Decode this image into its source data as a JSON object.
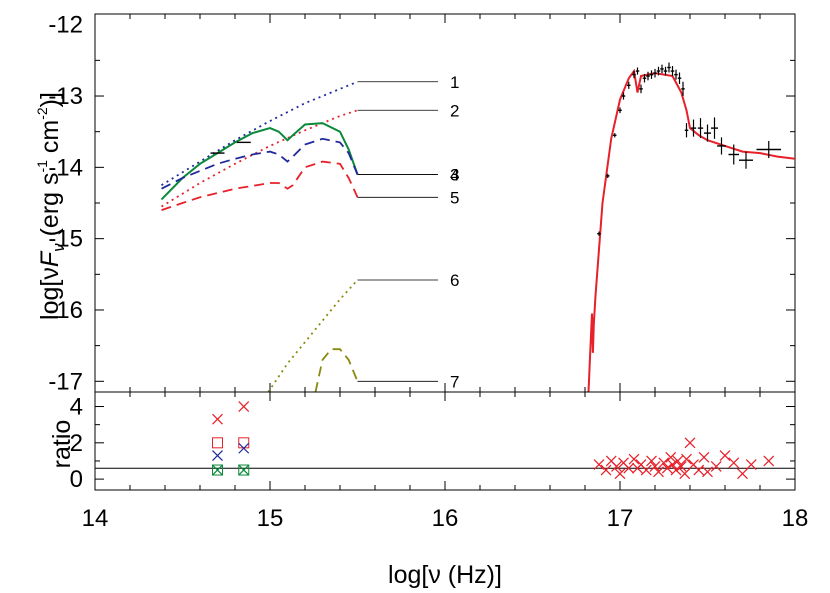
{
  "chart_data": [
    {
      "panel": "upper",
      "type": "line",
      "xlabel": "log[ν (Hz)]",
      "ylabel_parts": [
        "log[ν",
        "F",
        "ν",
        " (erg s",
        "-1",
        " cm",
        "-2",
        ")]"
      ],
      "xlim": [
        14,
        18
      ],
      "ylim": [
        -17.15,
        -11.85
      ],
      "yticks": [
        -12,
        -13,
        -14,
        -15,
        -16,
        -17
      ],
      "grid": false,
      "colors": {
        "red": "#e8202a",
        "blue": "#1f2a9a",
        "green": "#0a8a3a",
        "olive": "#8a8a10",
        "black": "#000000"
      },
      "series": [
        {
          "label": "1",
          "style": "dotted",
          "color": "#1f2a9a",
          "x": [
            14.38,
            14.6,
            14.8,
            15.0,
            15.2,
            15.4,
            15.5
          ],
          "y": [
            -14.25,
            -13.92,
            -13.62,
            -13.35,
            -13.1,
            -12.9,
            -12.8
          ]
        },
        {
          "label": "2",
          "style": "dotted",
          "color": "#e8202a",
          "x": [
            14.38,
            14.6,
            14.8,
            15.0,
            15.2,
            15.4,
            15.5
          ],
          "y": [
            -14.55,
            -14.22,
            -13.95,
            -13.7,
            -13.48,
            -13.28,
            -13.2
          ]
        },
        {
          "label": "3",
          "style": "solid",
          "color": "#0a8a3a",
          "x": [
            14.38,
            14.5,
            14.6,
            14.7,
            14.8,
            14.9,
            15.0,
            15.05,
            15.1,
            15.13,
            15.2,
            15.3,
            15.4,
            15.45,
            15.5
          ],
          "y": [
            -14.45,
            -14.15,
            -13.95,
            -13.8,
            -13.65,
            -13.52,
            -13.45,
            -13.5,
            -13.62,
            -13.55,
            -13.4,
            -13.38,
            -13.5,
            -13.75,
            -14.1
          ]
        },
        {
          "label": "4",
          "style": "dashed",
          "color": "#1f2a9a",
          "x": [
            14.38,
            14.5,
            14.6,
            14.7,
            14.8,
            14.9,
            15.0,
            15.05,
            15.1,
            15.13,
            15.2,
            15.3,
            15.4,
            15.45,
            15.5
          ],
          "y": [
            -14.3,
            -14.15,
            -14.05,
            -13.95,
            -13.88,
            -13.82,
            -13.78,
            -13.82,
            -13.92,
            -13.85,
            -13.68,
            -13.6,
            -13.65,
            -13.8,
            -14.1
          ]
        },
        {
          "label": "5",
          "style": "dashed",
          "color": "#e8202a",
          "x": [
            14.38,
            14.5,
            14.6,
            14.7,
            14.8,
            14.9,
            15.0,
            15.05,
            15.1,
            15.13,
            15.2,
            15.3,
            15.4,
            15.45,
            15.5
          ],
          "y": [
            -14.6,
            -14.5,
            -14.42,
            -14.36,
            -14.3,
            -14.26,
            -14.22,
            -14.22,
            -14.3,
            -14.25,
            -14.0,
            -13.92,
            -13.95,
            -14.15,
            -14.42
          ]
        },
        {
          "label": "6",
          "style": "dotted",
          "color": "#8a8a10",
          "x": [
            14.99,
            15.1,
            15.2,
            15.3,
            15.4,
            15.5
          ],
          "y": [
            -17.15,
            -16.75,
            -16.45,
            -16.15,
            -15.85,
            -15.58
          ]
        },
        {
          "label": "7",
          "style": "dashed",
          "color": "#8a8a10",
          "x": [
            15.26,
            15.3,
            15.35,
            15.4,
            15.45,
            15.5
          ],
          "y": [
            -17.15,
            -16.7,
            -16.55,
            -16.55,
            -16.7,
            -17.0
          ]
        },
        {
          "label": "",
          "style": "solid",
          "color": "#e8202a",
          "x": [
            16.82,
            16.83,
            16.84,
            16.845,
            16.85,
            16.86,
            16.9,
            16.95,
            17.0,
            17.05,
            17.08,
            17.1,
            17.12,
            17.2,
            17.3,
            17.35,
            17.38,
            17.4,
            17.45,
            17.5,
            17.6,
            17.7,
            17.8,
            17.9,
            18.0
          ],
          "y": [
            -17.15,
            -16.6,
            -16.05,
            -16.6,
            -16.2,
            -15.8,
            -14.5,
            -13.6,
            -13.05,
            -12.75,
            -12.65,
            -12.95,
            -12.72,
            -12.68,
            -12.72,
            -12.95,
            -13.2,
            -13.45,
            -13.55,
            -13.62,
            -13.7,
            -13.78,
            -13.8,
            -13.85,
            -13.88
          ]
        }
      ],
      "points": [
        {
          "color": "#000000",
          "x": [
            14.7,
            14.85
          ],
          "y": [
            -13.8,
            -13.65
          ],
          "xerr": [
            0.04,
            0.04
          ],
          "yerr": [
            0,
            0
          ]
        },
        {
          "color": "#000000",
          "x": [
            16.88,
            16.93,
            16.97,
            17.0,
            17.02,
            17.05,
            17.08,
            17.1,
            17.12,
            17.14,
            17.16,
            17.18,
            17.2,
            17.22,
            17.24,
            17.26,
            17.28,
            17.3,
            17.32,
            17.34,
            17.36,
            17.38,
            17.42,
            17.46,
            17.5,
            17.54,
            17.58,
            17.65,
            17.72,
            17.85
          ],
          "y": [
            -14.93,
            -14.12,
            -13.55,
            -13.2,
            -13.0,
            -12.85,
            -12.7,
            -12.65,
            -12.9,
            -12.75,
            -12.72,
            -12.7,
            -12.68,
            -12.65,
            -12.62,
            -12.65,
            -12.6,
            -12.65,
            -12.7,
            -12.75,
            -12.9,
            -13.48,
            -13.45,
            -13.45,
            -13.52,
            -13.45,
            -13.7,
            -13.82,
            -13.9,
            -13.75
          ],
          "xerr": [
            0.01,
            0.01,
            0.01,
            0.01,
            0.01,
            0.01,
            0.01,
            0.01,
            0.01,
            0.01,
            0.01,
            0.01,
            0.01,
            0.01,
            0.01,
            0.01,
            0.01,
            0.01,
            0.01,
            0.01,
            0.01,
            0.01,
            0.015,
            0.015,
            0.02,
            0.02,
            0.025,
            0.03,
            0.04,
            0.07
          ],
          "yerr": [
            0.03,
            0.03,
            0.03,
            0.04,
            0.05,
            0.05,
            0.05,
            0.05,
            0.06,
            0.06,
            0.06,
            0.06,
            0.06,
            0.06,
            0.06,
            0.06,
            0.07,
            0.07,
            0.07,
            0.08,
            0.1,
            0.1,
            0.12,
            0.14,
            0.12,
            0.15,
            0.12,
            0.14,
            0.12,
            0.12
          ]
        }
      ]
    },
    {
      "panel": "lower",
      "type": "scatter",
      "ylabel": "ratio",
      "xlim": [
        14,
        18
      ],
      "ylim": [
        -0.6,
        4.8
      ],
      "yticks": [
        0,
        2,
        4
      ],
      "xticks": [
        14,
        15,
        16,
        17,
        18
      ],
      "reference_line": 0.6,
      "series": [
        {
          "marker": "x",
          "color": "#e8202a",
          "x": [
            14.7,
            14.85,
            16.88,
            16.92,
            16.95,
            16.98,
            17.0,
            17.02,
            17.05,
            17.08,
            17.1,
            17.12,
            17.15,
            17.18,
            17.2,
            17.22,
            17.25,
            17.27,
            17.29,
            17.3,
            17.32,
            17.33,
            17.35,
            17.37,
            17.38,
            17.4,
            17.42,
            17.45,
            17.48,
            17.5,
            17.55,
            17.6,
            17.65,
            17.7,
            17.75,
            17.85
          ],
          "y": [
            3.3,
            4.0,
            0.8,
            0.5,
            1.0,
            0.7,
            0.3,
            0.9,
            0.6,
            1.1,
            0.6,
            0.8,
            0.5,
            1.0,
            0.7,
            0.4,
            0.9,
            0.6,
            1.2,
            0.8,
            0.5,
            1.0,
            0.7,
            0.3,
            1.1,
            2.0,
            0.8,
            0.5,
            1.2,
            0.4,
            0.7,
            1.3,
            0.9,
            0.3,
            0.8,
            1.0
          ]
        },
        {
          "marker": "square",
          "color": "#e8202a",
          "x": [
            14.7,
            14.85
          ],
          "y": [
            2.0,
            2.0
          ]
        },
        {
          "marker": "x",
          "color": "#1f2a9a",
          "x": [
            14.7,
            14.85
          ],
          "y": [
            1.3,
            1.7
          ]
        },
        {
          "marker": "square-x",
          "color": "#0a8a3a",
          "x": [
            14.7,
            14.85
          ],
          "y": [
            0.5,
            0.5
          ]
        }
      ]
    }
  ]
}
